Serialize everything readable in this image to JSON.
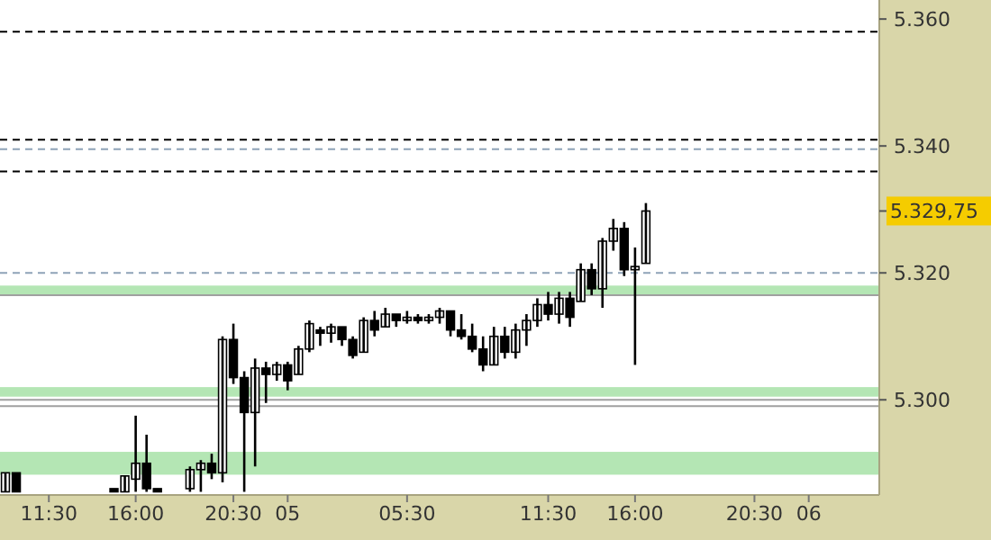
{
  "chart_data": {
    "type": "candlestick",
    "categories": [
      null,
      null,
      null,
      null,
      "11:30",
      null,
      null,
      null,
      null,
      null,
      null,
      null,
      "16:00",
      null,
      null,
      null,
      null,
      null,
      null,
      null,
      null,
      "20:30",
      null,
      null,
      null,
      null,
      "05",
      null,
      null,
      null,
      null,
      null,
      null,
      null,
      null,
      null,
      null,
      "05:30",
      null,
      null,
      null,
      null,
      null,
      null,
      null,
      null,
      null,
      null,
      null,
      null,
      "11:30",
      null,
      null,
      null,
      null,
      null,
      null,
      null,
      "16:00",
      null,
      null,
      null,
      null,
      null,
      null,
      null,
      null,
      null,
      null,
      "20:30",
      null,
      null,
      null,
      null,
      "06",
      null,
      null,
      null,
      null,
      null,
      null
    ],
    "ohlc": [
      [
        5285.5,
        5288.5,
        5285.5,
        5288.5
      ],
      [
        5288.5,
        5288.5,
        5285.5,
        5285.5
      ],
      null,
      null,
      null,
      null,
      null,
      null,
      null,
      null,
      [
        5286,
        5286,
        5285.5,
        5285.5
      ],
      [
        5285.5,
        5288,
        5285.5,
        5288
      ],
      [
        5287.5,
        5297.5,
        5285.5,
        5290
      ],
      [
        5290,
        5294.5,
        5285.5,
        5286
      ],
      [
        5286,
        5286,
        5285.5,
        5285.5
      ],
      null,
      null,
      [
        5286,
        5289.5,
        5285.5,
        5289
      ],
      [
        5289,
        5290.5,
        5285.5,
        5290
      ],
      [
        5290,
        5291.5,
        5287.5,
        5288.5
      ],
      [
        5288.5,
        5310,
        5287,
        5309.5
      ],
      [
        5309.5,
        5312,
        5302.5,
        5303.5
      ],
      [
        5303.5,
        5304.5,
        5285.5,
        5298
      ],
      [
        5298,
        5306.5,
        5289.5,
        5305
      ],
      [
        5305,
        5306,
        5299.5,
        5304
      ],
      [
        5304,
        5306,
        5303,
        5305.5
      ],
      [
        5305.5,
        5306,
        5301.5,
        5303
      ],
      [
        5304,
        5308.5,
        5304,
        5308
      ],
      [
        5308,
        5312.5,
        5307.5,
        5312
      ],
      [
        5311,
        5311.5,
        5308.5,
        5310.5
      ],
      [
        5310.5,
        5312,
        5309,
        5311.5
      ],
      [
        5311.5,
        5311.5,
        5308.5,
        5309.5
      ],
      [
        5309.5,
        5310,
        5306.5,
        5307
      ],
      [
        5307.5,
        5313,
        5307.5,
        5312.5
      ],
      [
        5312.5,
        5314,
        5310,
        5311
      ],
      [
        5311.5,
        5314.5,
        5311.5,
        5313.5
      ],
      [
        5313.5,
        5313.5,
        5311.5,
        5312.5
      ],
      [
        5312.5,
        5314,
        5312,
        5313
      ],
      [
        5313,
        5313.5,
        5312,
        5312.5
      ],
      [
        5312.5,
        5313.5,
        5312,
        5313
      ],
      [
        5313,
        5314.5,
        5312,
        5314
      ],
      [
        5314,
        5314,
        5310,
        5311
      ],
      [
        5311,
        5313.5,
        5309.5,
        5310
      ],
      [
        5310,
        5312,
        5307.5,
        5308
      ],
      [
        5308,
        5310,
        5304.5,
        5305.5
      ],
      [
        5305.5,
        5311.5,
        5305.5,
        5310
      ],
      [
        5310,
        5311.5,
        5306.5,
        5307.5
      ],
      [
        5307.5,
        5312,
        5306.5,
        5311
      ],
      [
        5311,
        5313.5,
        5308.5,
        5312.5
      ],
      [
        5312.5,
        5316,
        5311.5,
        5315
      ],
      [
        5315,
        5317,
        5312.5,
        5313.5
      ],
      [
        5313.5,
        5317,
        5312,
        5316
      ],
      [
        5316,
        5317,
        5311.5,
        5313
      ],
      [
        5315.5,
        5321.5,
        5315.5,
        5320.5
      ],
      [
        5320.5,
        5321.5,
        5316.5,
        5317.5
      ],
      [
        5317.5,
        5325.5,
        5314.5,
        5325
      ],
      [
        5325,
        5328.5,
        5323.5,
        5327
      ],
      [
        5327,
        5328,
        5319.5,
        5320.5
      ],
      [
        5320.5,
        5324,
        5305.5,
        5321
      ],
      [
        5321.5,
        5331,
        5321.5,
        5329.75
      ],
      null,
      null,
      null,
      null,
      null,
      null,
      null,
      null,
      null,
      null,
      null,
      null,
      null,
      null,
      null,
      null,
      null,
      null,
      null,
      null,
      null
    ],
    "color": "#000000",
    "ylim": [
      5285,
      5363
    ],
    "yticks": [
      {
        "value": 5300,
        "label": "5.300"
      },
      {
        "value": 5320,
        "label": "5.320"
      },
      {
        "value": 5340,
        "label": "5.340"
      },
      {
        "value": 5360,
        "label": "5.360"
      }
    ],
    "ref_lines": [
      {
        "axis": "y",
        "value": 5358,
        "label": null,
        "color": "#000000",
        "line_style": "dashed"
      },
      {
        "axis": "y",
        "value": 5341,
        "label": null,
        "color": "#000000",
        "line_style": "dashed"
      },
      {
        "axis": "y",
        "value": 5339.5,
        "label": null,
        "color": "#8fa3b8",
        "line_style": "dashed"
      },
      {
        "axis": "y",
        "value": 5336,
        "label": null,
        "color": "#000000",
        "line_style": "dashed"
      },
      {
        "axis": "y",
        "value": 5320,
        "label": null,
        "color": "#8fa3b8",
        "line_style": "dashed"
      },
      {
        "axis": "y",
        "value": 5316.5,
        "label": null,
        "color": "#a0a0a0",
        "line_style": "solid"
      },
      {
        "axis": "y",
        "value": 5300,
        "label": null,
        "color": "#a0a0a0",
        "line_style": "solid"
      },
      {
        "axis": "y",
        "value": 5299,
        "label": null,
        "color": "#a0a0a0",
        "line_style": "solid"
      }
    ],
    "annotations": [
      "5.329,75"
    ],
    "bands": [
      {
        "axis": "y",
        "from": 5316.5,
        "to": 5318,
        "label": null,
        "color": "#b4e6b4"
      },
      {
        "axis": "y",
        "from": 5300.5,
        "to": 5302,
        "label": null,
        "color": "#b4e6b4"
      },
      {
        "axis": "y",
        "from": 5288.2,
        "to": 5291.8,
        "label": null,
        "color": "#b4e6b4"
      }
    ]
  }
}
